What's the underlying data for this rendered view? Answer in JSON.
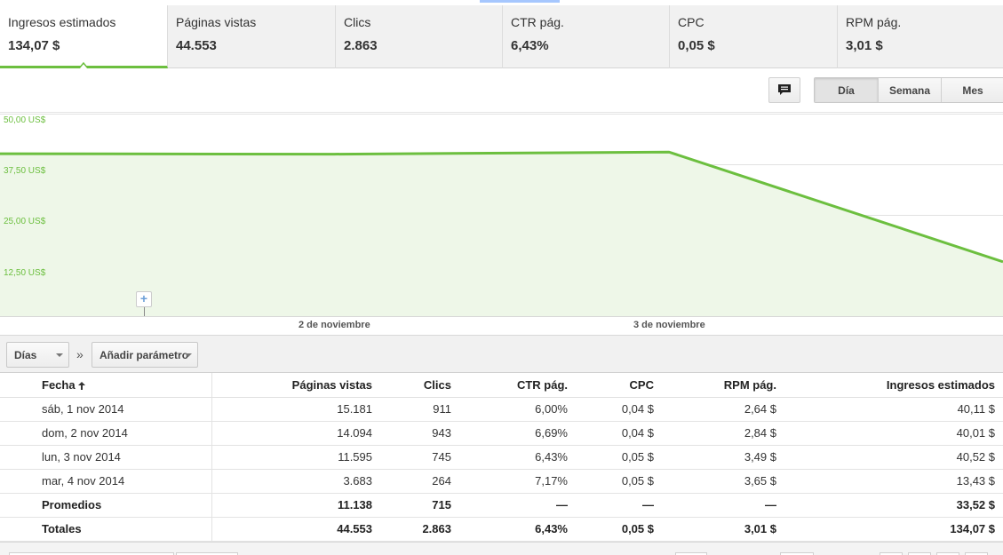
{
  "metrics": [
    {
      "label": "Ingresos estimados",
      "value": "134,07 $"
    },
    {
      "label": "Páginas vistas",
      "value": "44.553"
    },
    {
      "label": "Clics",
      "value": "2.863"
    },
    {
      "label": "CTR pág.",
      "value": "6,43%"
    },
    {
      "label": "CPC",
      "value": "0,05 $"
    },
    {
      "label": "RPM pág.",
      "value": "3,01 $"
    }
  ],
  "active_metric": "Ingresos estimados",
  "period": {
    "options": [
      "Día",
      "Semana",
      "Mes"
    ],
    "selected": "Día"
  },
  "chart_data": {
    "type": "area",
    "series": [
      {
        "values": [
          40.11,
          40.01,
          40.52,
          13.43
        ]
      }
    ],
    "x": [
      "sáb, 1 nov 2014",
      "dom, 2 nov 2014",
      "lun, 3 nov 2014",
      "mar, 4 nov 2014"
    ],
    "x_tick_labels": [
      "2 de noviembre",
      "3 de noviembre"
    ],
    "y_tick_labels": [
      "50,00 US$",
      "37,50 US$",
      "25,00 US$",
      "12,50 US$"
    ],
    "ylim": [
      0,
      50
    ],
    "grid": true,
    "color": "#6cbf3f",
    "fill": "#eef7e8"
  },
  "dimension": {
    "label": "Días",
    "add_label": "Añadir parámetro",
    "separator": "»"
  },
  "table": {
    "headers": [
      "Fecha",
      "Páginas vistas",
      "Clics",
      "CTR pág.",
      "CPC",
      "RPM pág.",
      "Ingresos estimados"
    ],
    "rows": [
      [
        "sáb, 1 nov 2014",
        "15.181",
        "911",
        "6,00%",
        "0,04 $",
        "2,64 $",
        "40,11 $"
      ],
      [
        "dom, 2 nov 2014",
        "14.094",
        "943",
        "6,69%",
        "0,04 $",
        "2,84 $",
        "40,01 $"
      ],
      [
        "lun, 3 nov 2014",
        "11.595",
        "745",
        "6,43%",
        "0,05 $",
        "3,49 $",
        "40,52 $"
      ],
      [
        "mar, 4 nov 2014",
        "3.683",
        "264",
        "7,17%",
        "0,05 $",
        "3,65 $",
        "13,43 $"
      ]
    ],
    "summary": [
      [
        "Promedios",
        "11.138",
        "715",
        "—",
        "—",
        "—",
        "33,52 $"
      ],
      [
        "Totales",
        "44.553",
        "2.863",
        "6,43%",
        "0,05 $",
        "3,01 $",
        "134,07 $"
      ]
    ]
  },
  "icons": {
    "annotation": "comment-icon",
    "sort": "sort-ascending-icon",
    "add_annotation": "plus-icon"
  }
}
